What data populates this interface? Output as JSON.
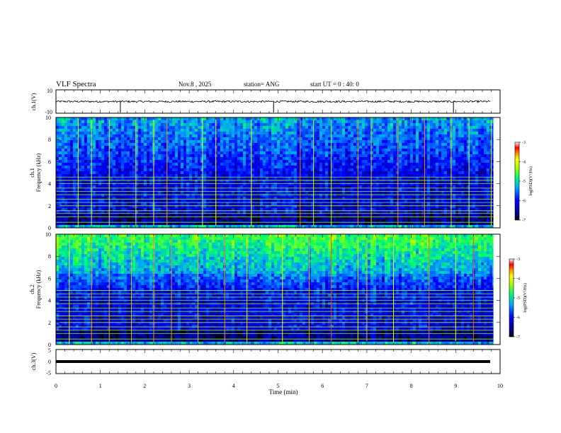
{
  "header": {
    "title": "VLF Spectra",
    "date": "Nov.8 , 2025",
    "station": "station= ANG",
    "start_ut": "start UT =  0 : 40: 0"
  },
  "colors": {
    "background": "#ffffff",
    "axis": "#000000",
    "colormap": [
      "#000066",
      "#0000cc",
      "#0044ff",
      "#00aaff",
      "#00ffcc",
      "#33ff33",
      "#aaff00",
      "#ffff00",
      "#ff9900",
      "#ff0000",
      "#ffffff"
    ]
  },
  "chart_data": [
    {
      "type": "line",
      "name": "ch1-waveform",
      "ylabel": "ch.1(V)",
      "ylim": [
        -10,
        10
      ],
      "yticks": [
        "10",
        "-10"
      ],
      "xlim": [
        0,
        10
      ],
      "baseline": 0,
      "spikes_min": [
        1.45,
        4.9,
        8.95
      ]
    },
    {
      "type": "heatmap",
      "name": "ch1-spectrogram",
      "ylabel_channel": "ch.1",
      "ylabel": "Frequency (kHz)",
      "ylim": [
        0,
        10
      ],
      "yticks": [
        "0",
        "2",
        "4",
        "6",
        "8",
        "10"
      ],
      "xlim": [
        0,
        9.85
      ],
      "colorbar": {
        "label": "log(PSD)(V²/Hz)",
        "range": [
          -7,
          -3
        ],
        "ticks": [
          "-3",
          "-4",
          "-5",
          "-6",
          "-7"
        ]
      },
      "harmonic_lines_khz": [
        0.5,
        1.0,
        1.3,
        1.55,
        2.0,
        2.3,
        2.6,
        3.0,
        3.3,
        3.6,
        4.0,
        4.3,
        4.6
      ],
      "vertical_events_min": [
        0.5,
        0.8,
        1.2,
        1.8,
        2.2,
        2.5,
        3.3,
        3.6,
        4.4,
        5.5,
        5.8,
        6.2,
        6.8,
        7.1,
        7.7,
        8.3,
        8.9,
        9.3,
        9.8
      ]
    },
    {
      "type": "heatmap",
      "name": "ch2-spectrogram",
      "ylabel_channel": "ch.2",
      "ylabel": "Frequency (kHz)",
      "ylim": [
        0,
        10
      ],
      "yticks": [
        "0",
        "2",
        "4",
        "6",
        "8",
        "10"
      ],
      "xlim": [
        0,
        9.85
      ],
      "colorbar": {
        "label": "log(PSD)(V²/Hz)",
        "range": [
          -7,
          -3
        ],
        "ticks": [
          "-3",
          "-4",
          "-5",
          "-6",
          "-7"
        ]
      },
      "harmonic_lines_khz": [
        0.5,
        1.0,
        1.3,
        1.6,
        2.0,
        2.3,
        2.6,
        3.0,
        3.3,
        3.7,
        4.0,
        4.3,
        4.6,
        4.9
      ],
      "vertical_events_min": [
        0.3,
        0.8,
        1.2,
        1.7,
        2.2,
        2.6,
        3.2,
        3.8,
        4.3,
        5.1,
        5.7,
        6.2,
        6.8,
        7.0,
        7.6,
        8.4,
        9.0,
        9.4
      ]
    },
    {
      "type": "line",
      "name": "ch3-waveform",
      "ylabel": "ch.3(V)",
      "ylim": [
        -5,
        5
      ],
      "yticks": [
        "5",
        "0",
        "-5"
      ],
      "xlim": [
        0,
        10
      ],
      "baseline": 0
    }
  ],
  "xaxis": {
    "label": "Time (min)",
    "ticks": [
      "0",
      "1",
      "2",
      "3",
      "4",
      "5",
      "6",
      "7",
      "8",
      "9",
      "10"
    ],
    "range": [
      0,
      10
    ]
  }
}
